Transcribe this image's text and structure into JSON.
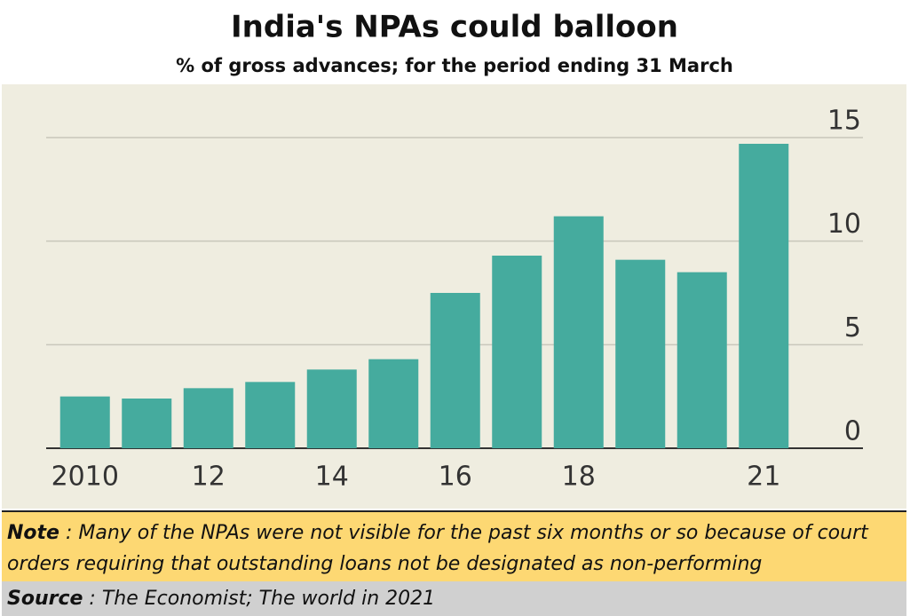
{
  "chart_data": {
    "type": "bar",
    "title": "India's NPAs could balloon",
    "subtitle": "% of gross advances; for the period ending 31 March",
    "categories": [
      "2010",
      null,
      "12",
      null,
      "14",
      null,
      "16",
      null,
      "18",
      null,
      null,
      "21"
    ],
    "values": [
      2.5,
      2.4,
      2.9,
      3.2,
      3.8,
      4.3,
      7.5,
      9.3,
      11.2,
      9.1,
      8.5,
      14.7
    ],
    "color": "#45ab9e",
    "ylim": [
      0,
      15
    ],
    "yticks": [
      0,
      5,
      10,
      15
    ],
    "grid": true
  },
  "note": {
    "label": "Note",
    "text": " : Many of the NPAs were not visible for the past six months or so because of court orders requiring that outstanding loans not be designated as non-performing"
  },
  "source": {
    "label": "Source",
    "text": " : The Economist; The world in 2021"
  }
}
